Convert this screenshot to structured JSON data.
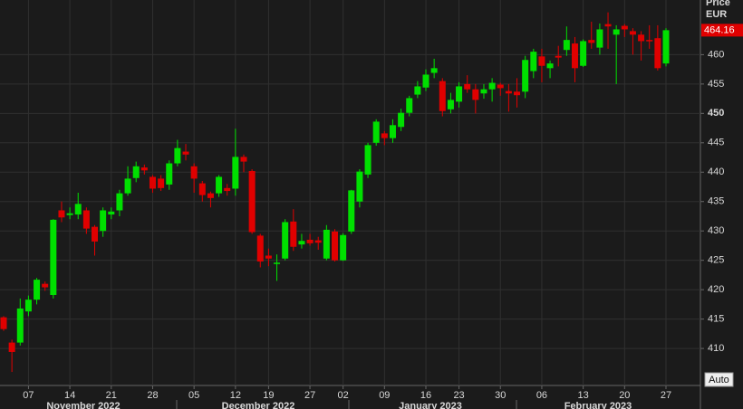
{
  "chart_data": {
    "type": "candlestick",
    "y_axis_title": [
      "Price",
      "EUR"
    ],
    "x": [
      null,
      null,
      null,
      "07",
      null,
      null,
      null,
      null,
      "14",
      null,
      null,
      null,
      null,
      "21",
      null,
      null,
      null,
      null,
      "28",
      null,
      null,
      null,
      null,
      "05",
      null,
      null,
      null,
      null,
      "12",
      null,
      null,
      null,
      "19",
      null,
      null,
      null,
      null,
      "27",
      null,
      null,
      null,
      "02",
      null,
      null,
      null,
      null,
      "09",
      null,
      null,
      null,
      null,
      "16",
      null,
      null,
      null,
      "23",
      null,
      null,
      null,
      null,
      "30",
      null,
      null,
      null,
      null,
      "06",
      null,
      null,
      null,
      null,
      "13",
      null,
      null,
      null,
      null,
      "20",
      null,
      null,
      null,
      null,
      "27"
    ],
    "months": [
      "November 2022",
      "December 2022",
      "January 2023",
      "February 2023"
    ],
    "open": [
      415.3,
      411,
      411,
      416.3,
      418.3,
      421,
      419.1,
      433.5,
      432.7,
      432.8,
      433.5,
      430.7,
      430,
      432.8,
      433.5,
      436.4,
      439,
      440.8,
      439.2,
      438.9,
      437.9,
      441.5,
      443.5,
      441,
      438.1,
      436.4,
      436.4,
      437.3,
      437.2,
      442.6,
      440.2,
      429.2,
      425.8,
      424.4,
      425.3,
      431.6,
      427.7,
      428.5,
      428.4,
      425.3,
      429.9,
      425,
      429.9,
      435,
      439.6,
      445,
      446.6,
      445.8,
      447.7,
      450.1,
      453.2,
      454.4,
      456.9,
      455.5,
      450.7,
      452,
      455,
      454.1,
      453.4,
      454.1,
      454.9,
      453.8,
      453.7,
      453.7,
      457.2,
      459.7,
      457.7,
      459.8,
      460.8,
      461.9,
      458.1,
      462.5,
      461.2,
      465.2,
      463.4,
      464.9,
      464,
      463.4,
      462.5,
      462.8,
      458.5
    ],
    "high": [
      415.5,
      411.5,
      418.5,
      419,
      422,
      421.4,
      432,
      435,
      434,
      436.5,
      434,
      431,
      434,
      434,
      437,
      441,
      441.8,
      441.3,
      439.5,
      439.5,
      442,
      445.5,
      444.8,
      441.5,
      438.5,
      436.7,
      439.5,
      438,
      447.4,
      443,
      440.5,
      429.5,
      427,
      426,
      432,
      433.7,
      429.5,
      429.5,
      429,
      431,
      430.3,
      429.6,
      437,
      440.5,
      445,
      449,
      447,
      449,
      450.8,
      453,
      455.5,
      457.5,
      459.3,
      456,
      453.5,
      455.3,
      456.5,
      455,
      455,
      456,
      455.2,
      455,
      456,
      459.8,
      461,
      461,
      459,
      461.5,
      464.8,
      463,
      462.6,
      465.6,
      465.3,
      467.2,
      465,
      465.2,
      464.5,
      464,
      465,
      465,
      464.5
    ],
    "low": [
      413,
      406,
      410.5,
      415.5,
      417.5,
      419.8,
      418.5,
      431.5,
      432,
      432,
      429.5,
      425.8,
      429,
      432,
      432.5,
      436,
      438.3,
      439.6,
      436.5,
      436.8,
      437,
      441,
      442,
      436.5,
      435,
      434,
      435.8,
      436,
      436,
      440,
      429.5,
      423.8,
      424,
      421.5,
      425,
      426.6,
      427,
      427.5,
      426.8,
      425,
      424.8,
      424.9,
      429.5,
      434,
      439,
      444.5,
      444.6,
      445,
      447,
      449.5,
      452.6,
      453.8,
      456,
      449.5,
      450,
      451,
      453.5,
      450,
      452.5,
      452,
      453,
      450.3,
      451,
      452.6,
      456,
      455.3,
      456,
      458,
      459.8,
      455.3,
      457.9,
      461,
      460,
      461,
      455,
      463,
      460,
      459,
      461,
      457.3,
      458
    ],
    "close": [
      413.3,
      409.4,
      416.8,
      418.3,
      421.7,
      420.4,
      431.9,
      432.3,
      433,
      434.6,
      430.4,
      428.2,
      433.5,
      433.3,
      436.4,
      438.9,
      441,
      440.3,
      437.2,
      437.3,
      441.5,
      444.1,
      443,
      438.9,
      436.1,
      435.6,
      439.2,
      436.8,
      442.6,
      441.8,
      429.8,
      424.8,
      425.3,
      424.6,
      431.5,
      427.3,
      428.3,
      427.9,
      428,
      430.2,
      425,
      429.3,
      436.9,
      440.1,
      444.6,
      448.6,
      445.8,
      448,
      450.1,
      452.6,
      454.6,
      456.6,
      457.7,
      450.4,
      452.3,
      454.6,
      454.1,
      452.3,
      454.1,
      455.2,
      454.3,
      453.4,
      453.1,
      459.1,
      460.5,
      458.1,
      458.5,
      459.5,
      462.5,
      457.7,
      462.3,
      462,
      464.3,
      464.8,
      464.3,
      464.3,
      463.4,
      462.3,
      462.3,
      457.7,
      464.16
    ],
    "up_color": "#00e000",
    "down_color": "#e00000",
    "ylim": [
      403.7,
      469.3
    ],
    "yticks": [
      410,
      415,
      420,
      425,
      430,
      435,
      440,
      445,
      450,
      455,
      460
    ],
    "grid": true,
    "auto_button": "Auto"
  }
}
